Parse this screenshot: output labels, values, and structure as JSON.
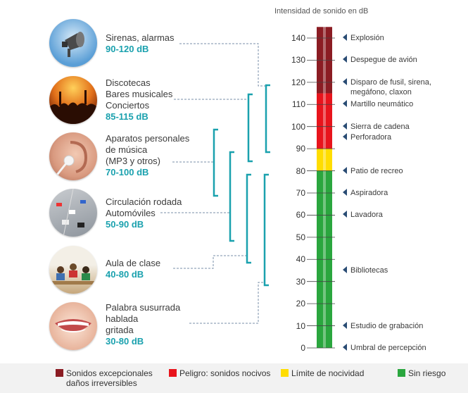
{
  "axis_title": "Intensidad de sonido en dB",
  "ticks": [
    "140",
    "130",
    "120",
    "110",
    "100",
    "90",
    "80",
    "70",
    "60",
    "50",
    "40",
    "30",
    "20",
    "10",
    "0"
  ],
  "sources": [
    {
      "lines": [
        "Sirenas, alarmas"
      ],
      "range": "90-120 dB",
      "icon": "megaphone-icon"
    },
    {
      "lines": [
        "Discotecas",
        "Bares musicales",
        "Conciertos"
      ],
      "range": "85-115 dB",
      "icon": "concert-crowd-icon"
    },
    {
      "lines": [
        "Aparatos personales",
        "de música",
        "(MP3 y otros)"
      ],
      "range": "70-100 dB",
      "icon": "ear-earphone-icon"
    },
    {
      "lines": [
        "Circulación rodada",
        "Automóviles"
      ],
      "range": "50-90 dB",
      "icon": "traffic-icon"
    },
    {
      "lines": [
        "Aula de clase"
      ],
      "range": "40-80 dB",
      "icon": "classroom-icon"
    },
    {
      "lines": [
        "Palabra susurrada",
        "hablada",
        "gritada"
      ],
      "range": "30-80 dB",
      "icon": "mouth-icon"
    }
  ],
  "annotations": [
    {
      "text": "Explosión",
      "db": 140
    },
    {
      "text": "Despegue de avión",
      "db": 130
    },
    {
      "text": "Disparo de fusil, sirena,",
      "text2": "megáfono, claxon",
      "db": 120
    },
    {
      "text": "Martillo neumático",
      "db": 110
    },
    {
      "text": "Sierra de cadena",
      "db": 100
    },
    {
      "text": "Perforadora",
      "db": 95
    },
    {
      "text": "Patio de recreo",
      "db": 80
    },
    {
      "text": "Aspiradora",
      "db": 70
    },
    {
      "text": "Lavadora",
      "db": 60
    },
    {
      "text": "Bibliotecas",
      "db": 35
    },
    {
      "text": "Estudio de grabación",
      "db": 10
    },
    {
      "text": "Umbral de percepción",
      "db": 0
    }
  ],
  "zones": [
    {
      "from": 115,
      "to": 145,
      "color": "#8b1c23"
    },
    {
      "from": 90,
      "to": 115,
      "color": "#e8141c"
    },
    {
      "from": 80,
      "to": 90,
      "color": "#ffdd00"
    },
    {
      "from": 0,
      "to": 80,
      "color": "#2aa63e"
    }
  ],
  "legend": [
    {
      "text": "Sonidos excepcionales",
      "text2": "daños irreversibles",
      "color": "#8b1c23"
    },
    {
      "text": "Peligro: sonidos nocivos",
      "text2": "",
      "color": "#e8141c"
    },
    {
      "text": "Límite de nocividad",
      "text2": "",
      "color": "#ffdd00"
    },
    {
      "text": "Sin riesgo",
      "text2": "",
      "color": "#2aa63e"
    }
  ]
}
